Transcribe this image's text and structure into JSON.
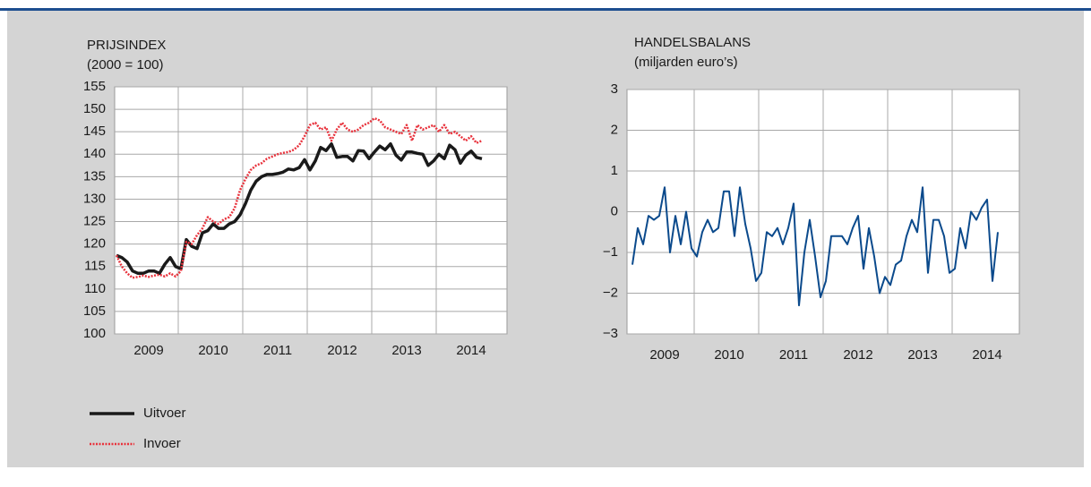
{
  "chart_data": [
    {
      "type": "line",
      "title": "PRIJSINDEX",
      "subtitle": "(2000 = 100)",
      "categories": [
        null,
        null,
        null,
        null,
        null,
        null,
        "2009",
        null,
        null,
        null,
        null,
        null,
        null,
        null,
        null,
        null,
        null,
        null,
        "2010",
        null,
        null,
        null,
        null,
        null,
        null,
        null,
        null,
        null,
        null,
        null,
        "2011",
        null,
        null,
        null,
        null,
        null,
        null,
        null,
        null,
        null,
        null,
        null,
        "2012",
        null,
        null,
        null,
        null,
        null,
        null,
        null,
        null,
        null,
        null,
        null,
        "2013",
        null,
        null,
        null,
        null,
        null,
        null,
        null,
        null,
        null,
        null,
        null,
        "2014",
        null,
        null
      ],
      "series": [
        {
          "name": "Uitvoer",
          "color": "#1a1a1a",
          "line_style": "solid",
          "values": [
            117.5,
            117,
            116,
            114,
            113.5,
            113.5,
            114,
            114,
            113.5,
            115.5,
            117,
            115,
            114.5,
            121,
            119.5,
            119,
            122.5,
            123,
            124.5,
            123.5,
            123.5,
            124.5,
            125,
            126.5,
            129,
            132,
            134,
            135,
            135.5,
            135.5,
            135.7,
            136,
            136.7,
            136.5,
            137,
            138.8,
            136.5,
            138.5,
            141.5,
            140.8,
            142.3,
            139.3,
            139.5,
            139.5,
            138.5,
            140.8,
            140.7,
            139,
            140.5,
            141.8,
            141,
            142.3,
            139.8,
            138.7,
            140.5,
            140.5,
            140.2,
            140,
            137.5,
            138.5,
            140,
            139,
            142,
            141,
            138,
            139.8,
            140.7,
            139.3,
            139
          ]
        },
        {
          "name": "Invoer",
          "color": "#e8323c",
          "line_style": "dotted",
          "values": [
            117.5,
            115,
            113.5,
            112.5,
            112.7,
            113,
            112.7,
            113,
            113.2,
            112.8,
            113.5,
            112.8,
            114,
            120.5,
            120,
            122,
            123.5,
            126,
            125,
            124.5,
            125.5,
            126,
            128,
            132,
            134.5,
            136.5,
            137.5,
            138,
            139,
            139.5,
            140,
            140.3,
            140.5,
            141,
            142,
            144,
            146.5,
            147,
            145.5,
            146,
            143,
            145.5,
            147,
            145.5,
            145,
            145.5,
            146.5,
            147,
            148,
            147.5,
            146,
            145.5,
            145,
            144.5,
            146.5,
            143,
            146.5,
            145.5,
            146,
            146.5,
            145,
            146.5,
            144.5,
            145,
            144,
            143,
            144,
            142.5,
            143
          ]
        }
      ],
      "ylim": [
        100,
        155
      ],
      "yticks": [
        100,
        105,
        110,
        115,
        120,
        125,
        130,
        135,
        140,
        145,
        150,
        155
      ],
      "grid": true,
      "legend": "bottom-left"
    },
    {
      "type": "line",
      "title": "HANDELSBALANS",
      "subtitle": "(miljarden euro’s)",
      "categories": [
        null,
        null,
        null,
        null,
        null,
        null,
        "2009",
        null,
        null,
        null,
        null,
        null,
        null,
        null,
        null,
        null,
        null,
        null,
        "2010",
        null,
        null,
        null,
        null,
        null,
        null,
        null,
        null,
        null,
        null,
        null,
        "2011",
        null,
        null,
        null,
        null,
        null,
        null,
        null,
        null,
        null,
        null,
        null,
        "2012",
        null,
        null,
        null,
        null,
        null,
        null,
        null,
        null,
        null,
        null,
        null,
        "2013",
        null,
        null,
        null,
        null,
        null,
        null,
        null,
        null,
        null,
        null,
        null,
        "2014",
        null,
        null
      ],
      "series": [
        {
          "color": "#0b4a8c",
          "line_style": "solid",
          "values": [
            -1.3,
            -0.4,
            -0.8,
            -0.1,
            -0.2,
            -0.1,
            0.6,
            -1.0,
            -0.1,
            -0.8,
            0,
            -0.9,
            -1.1,
            -0.5,
            -0.2,
            -0.5,
            -0.4,
            0.5,
            0.5,
            -0.6,
            0.6,
            -0.3,
            -0.9,
            -1.7,
            -1.5,
            -0.5,
            -0.6,
            -0.4,
            -0.8,
            -0.4,
            0.2,
            -2.3,
            -1.0,
            -0.2,
            -1.1,
            -2.1,
            -1.7,
            -0.6,
            -0.6,
            -0.6,
            -0.8,
            -0.4,
            -0.1,
            -1.4,
            -0.4,
            -1.1,
            -2.0,
            -1.6,
            -1.8,
            -1.3,
            -1.2,
            -0.6,
            -0.2,
            -0.5,
            0.6,
            -1.5,
            -0.2,
            -0.2,
            -0.6,
            -1.5,
            -1.4,
            -0.4,
            -0.9,
            0,
            -0.2,
            0.1,
            0.3,
            -1.7,
            -0.5
          ]
        }
      ],
      "ylim": [
        -3,
        3
      ],
      "yticks": [
        {
          "value": -3,
          "label": "−3"
        },
        {
          "value": -2,
          "label": "−2"
        },
        {
          "value": -1,
          "label": "−1"
        },
        0,
        1,
        2,
        3
      ],
      "grid": true
    }
  ]
}
